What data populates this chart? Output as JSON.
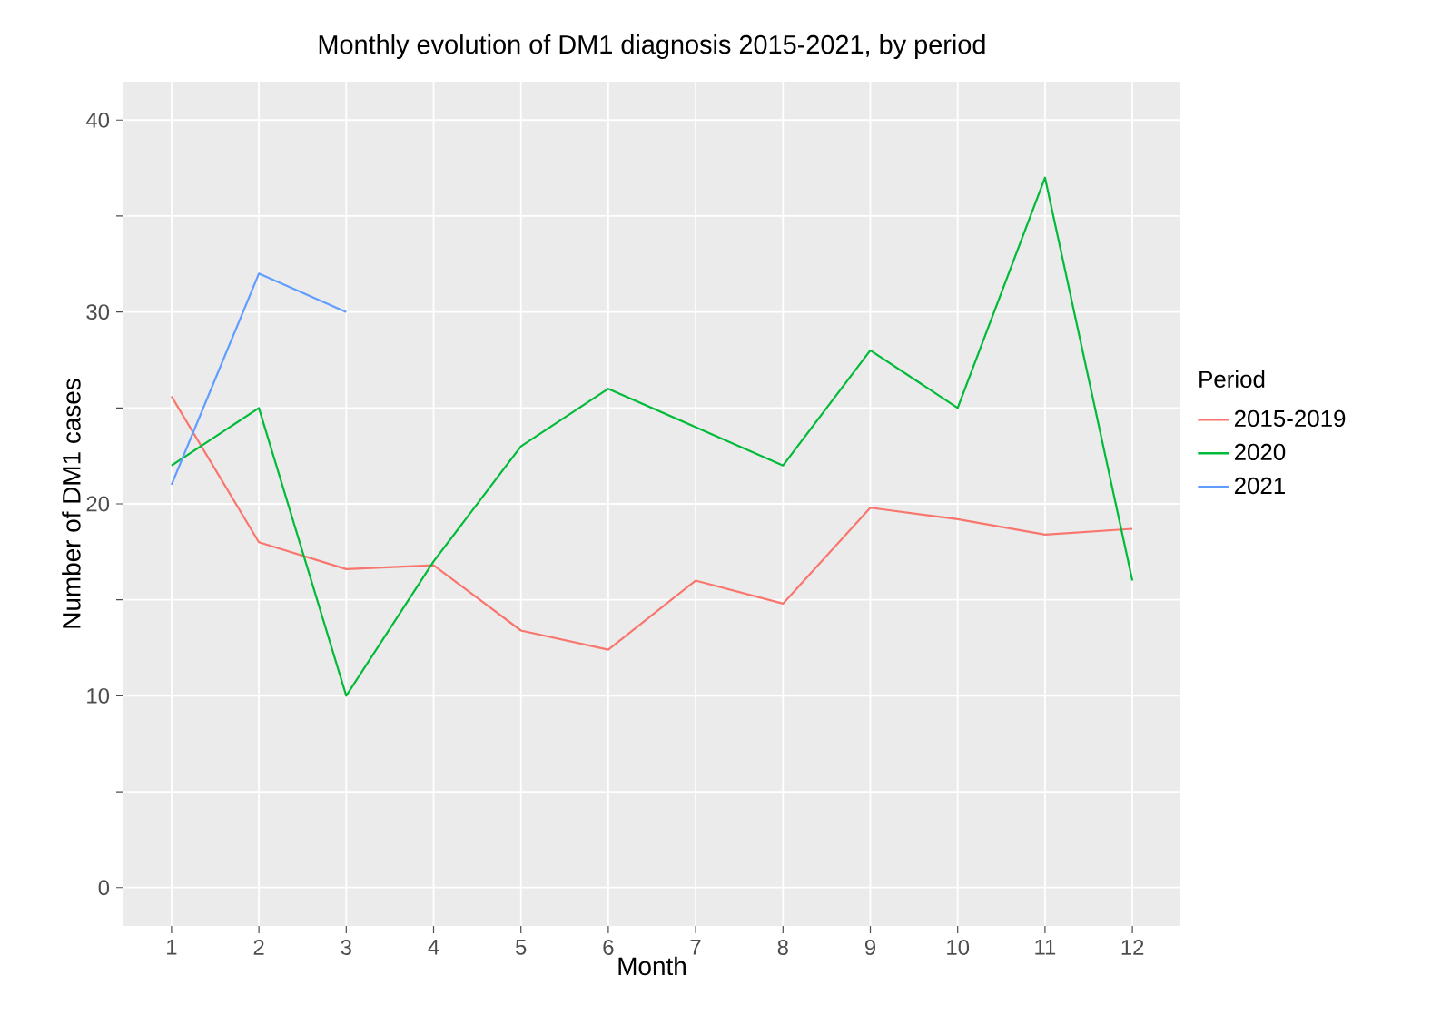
{
  "chart_data": {
    "type": "line",
    "title": "Monthly evolution of DM1 diagnosis 2015-2021, by period",
    "xlabel": "Month",
    "ylabel": "Number of DM1 cases",
    "legend_title": "Period",
    "x": [
      1,
      2,
      3,
      4,
      5,
      6,
      7,
      8,
      9,
      10,
      11,
      12
    ],
    "series": [
      {
        "name": "2015-2019",
        "color": "#f8766d",
        "values": [
          25.6,
          18.0,
          16.6,
          16.8,
          13.4,
          12.4,
          16.0,
          14.8,
          19.8,
          19.2,
          18.4,
          18.7
        ]
      },
      {
        "name": "2020",
        "color": "#00ba38",
        "values": [
          22,
          25,
          10,
          17,
          23,
          26,
          24,
          22,
          28,
          25,
          37,
          16
        ]
      },
      {
        "name": "2021",
        "color": "#619cff",
        "values": [
          21,
          32,
          30,
          null,
          null,
          null,
          null,
          null,
          null,
          null,
          null,
          null
        ]
      }
    ],
    "xlim": [
      0.45,
      12.55
    ],
    "ylim": [
      -2,
      42
    ],
    "xticks": [
      1,
      2,
      3,
      4,
      5,
      6,
      7,
      8,
      9,
      10,
      11,
      12
    ],
    "yticks": [
      0,
      {
        "value": 5,
        "label": null
      },
      10,
      {
        "value": 15,
        "label": null
      },
      20,
      {
        "value": 25,
        "label": null
      },
      30,
      {
        "value": 35,
        "label": null
      },
      40
    ],
    "grid": true,
    "legend": "right",
    "marker": "none",
    "line_style": "solid"
  }
}
